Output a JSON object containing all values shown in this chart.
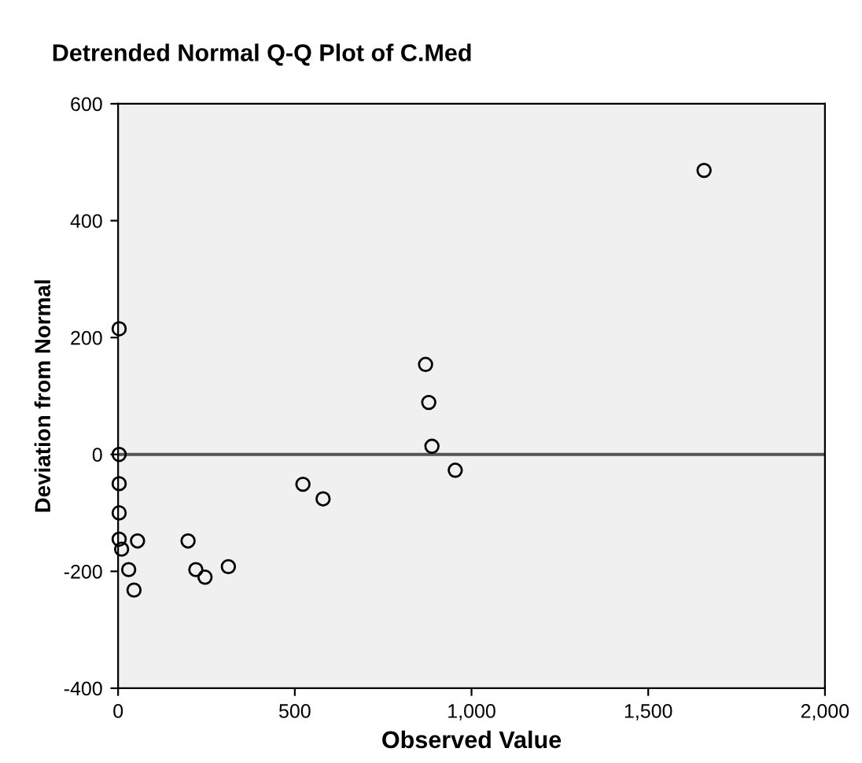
{
  "chart_data": {
    "type": "scatter",
    "title": "Detrended Normal Q-Q Plot of C.Med",
    "xlabel": "Observed Value",
    "ylabel": "Deviation from Normal",
    "x": [
      3,
      3,
      3,
      3,
      3,
      10,
      30,
      45,
      55,
      198,
      220,
      246,
      312,
      523,
      580,
      870,
      879,
      888,
      954,
      1658
    ],
    "values": [
      215,
      0,
      -50,
      -100,
      -145,
      -162,
      -197,
      -232,
      -148,
      -148,
      -197,
      -210,
      -192,
      -51,
      -76,
      154,
      89,
      14,
      -27,
      486
    ],
    "color": "#000000",
    "marker": "circle",
    "xlim": [
      0,
      2000
    ],
    "xticks": [
      0,
      500,
      {
        "value": 1000,
        "label": "1,000"
      },
      {
        "value": 1500,
        "label": "1,500"
      },
      {
        "value": 2000,
        "label": "2,000"
      }
    ],
    "ylim": [
      -400,
      600
    ],
    "yticks": [
      -400,
      -200,
      0,
      200,
      400,
      600
    ],
    "ref_lines": [
      {
        "axis": "y",
        "value": 0,
        "color": "#555555"
      }
    ],
    "grid": false,
    "legend": false
  }
}
